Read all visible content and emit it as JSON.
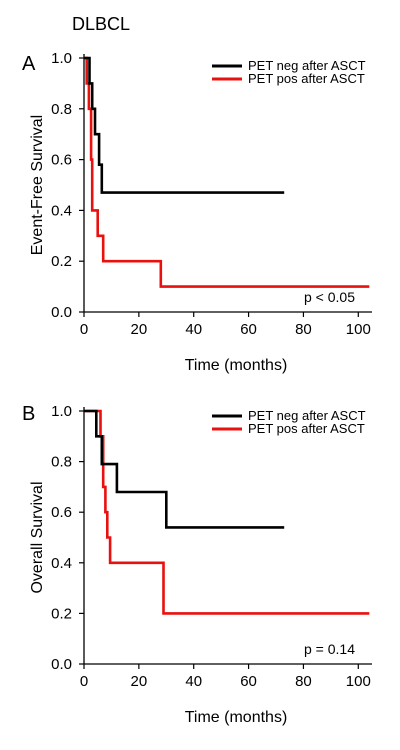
{
  "figure_title": "DLBCL",
  "colors": {
    "neg": "#000000",
    "pos": "#e8110f"
  },
  "chart_data": [
    {
      "type": "line",
      "step": "km-survival",
      "panel": "A",
      "xlabel": "Time (months)",
      "ylabel": "Event-Free Survival",
      "xlim": [
        0,
        105
      ],
      "ylim": [
        0,
        1.0
      ],
      "xticks": [
        "0",
        "20",
        "40",
        "60",
        "80",
        "100"
      ],
      "yticks": [
        "0.0",
        "0.2",
        "0.4",
        "0.6",
        "0.8",
        "1.0"
      ],
      "grid": false,
      "legend_position": "top-right",
      "annotation": "p < 0.05",
      "series": [
        {
          "name": "PET neg after ASCT",
          "color": "#000000",
          "points": [
            [
              0,
              1.0
            ],
            [
              2,
              1.0
            ],
            [
              2,
              0.9
            ],
            [
              3,
              0.9
            ],
            [
              3,
              0.8
            ],
            [
              4,
              0.8
            ],
            [
              4,
              0.7
            ],
            [
              5.5,
              0.7
            ],
            [
              5.5,
              0.58
            ],
            [
              6.5,
              0.58
            ],
            [
              6.5,
              0.47
            ],
            [
              73,
              0.47
            ]
          ]
        },
        {
          "name": "PET pos after ASCT",
          "color": "#e8110f",
          "points": [
            [
              0,
              1.0
            ],
            [
              1,
              1.0
            ],
            [
              1,
              0.9
            ],
            [
              1.8,
              0.9
            ],
            [
              1.8,
              0.8
            ],
            [
              2.6,
              0.8
            ],
            [
              2.6,
              0.6
            ],
            [
              3,
              0.6
            ],
            [
              3,
              0.4
            ],
            [
              5,
              0.4
            ],
            [
              5,
              0.3
            ],
            [
              7,
              0.3
            ],
            [
              7,
              0.2
            ],
            [
              28,
              0.2
            ],
            [
              28,
              0.1
            ],
            [
              104,
              0.1
            ]
          ]
        }
      ]
    },
    {
      "type": "line",
      "step": "km-survival",
      "panel": "B",
      "xlabel": "Time (months)",
      "ylabel": "Overall Survival",
      "xlim": [
        0,
        105
      ],
      "ylim": [
        0,
        1.0
      ],
      "xticks": [
        "0",
        "20",
        "40",
        "60",
        "80",
        "100"
      ],
      "yticks": [
        "0.0",
        "0.2",
        "0.4",
        "0.6",
        "0.8",
        "1.0"
      ],
      "grid": false,
      "legend_position": "top-right",
      "annotation": "p = 0.14",
      "series": [
        {
          "name": "PET neg after ASCT",
          "color": "#000000",
          "points": [
            [
              0,
              1.0
            ],
            [
              4.5,
              1.0
            ],
            [
              4.5,
              0.9
            ],
            [
              6.5,
              0.9
            ],
            [
              6.5,
              0.79
            ],
            [
              12,
              0.79
            ],
            [
              12,
              0.68
            ],
            [
              30,
              0.68
            ],
            [
              30,
              0.54
            ],
            [
              73,
              0.54
            ]
          ]
        },
        {
          "name": "PET pos after ASCT",
          "color": "#e8110f",
          "points": [
            [
              0,
              1.0
            ],
            [
              6,
              1.0
            ],
            [
              6,
              0.9
            ],
            [
              7,
              0.9
            ],
            [
              7,
              0.7
            ],
            [
              7.8,
              0.7
            ],
            [
              7.8,
              0.6
            ],
            [
              8.5,
              0.6
            ],
            [
              8.5,
              0.5
            ],
            [
              9.5,
              0.5
            ],
            [
              9.5,
              0.4
            ],
            [
              29,
              0.4
            ],
            [
              29,
              0.2
            ],
            [
              104,
              0.2
            ]
          ]
        }
      ]
    }
  ]
}
